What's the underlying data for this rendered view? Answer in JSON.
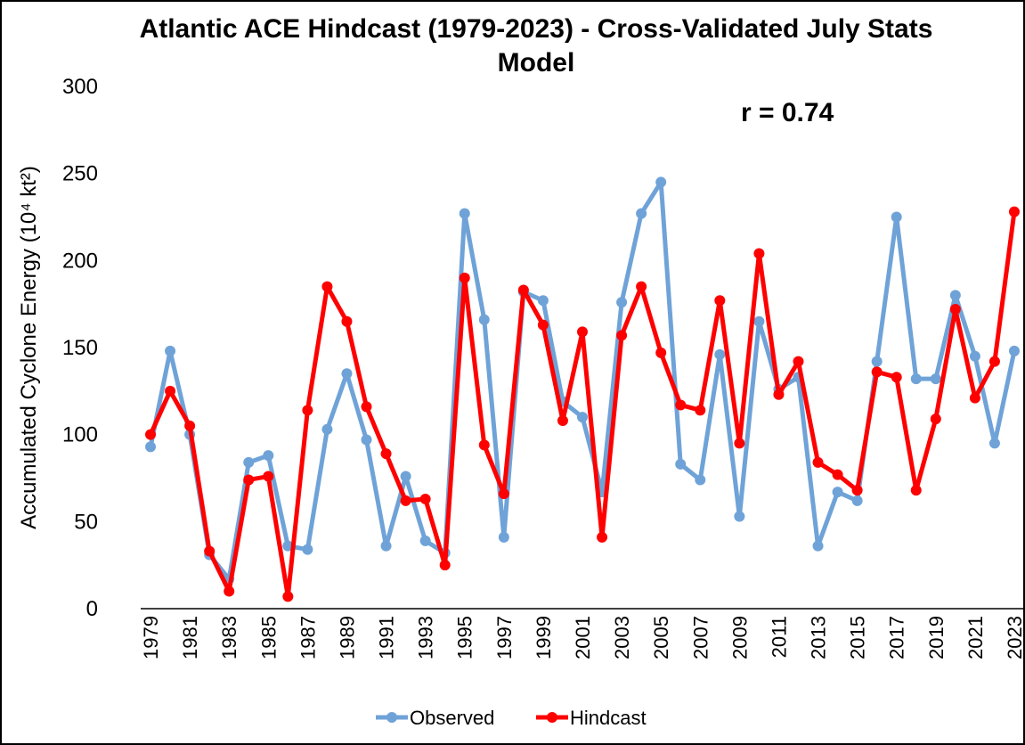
{
  "chart_data": {
    "type": "line",
    "title": "Atlantic ACE Hindcast (1979-2023) - Cross-Validated July Stats Model",
    "annotation": "r = 0.74",
    "y_label": "Accumulated Cyclone Energy (10⁴ kt²)",
    "categories": [
      "1979",
      null,
      "1981",
      null,
      "1983",
      null,
      "1985",
      null,
      "1987",
      null,
      "1989",
      null,
      "1991",
      null,
      "1993",
      null,
      "1995",
      null,
      "1997",
      null,
      "1999",
      null,
      "2001",
      null,
      "2003",
      null,
      "2005",
      null,
      "2007",
      null,
      "2009",
      null,
      "2011",
      null,
      "2013",
      null,
      "2015",
      null,
      "2017",
      null,
      "2019",
      null,
      "2021",
      null,
      "2023"
    ],
    "series": [
      {
        "name": "Observed",
        "color": "#6fa3d8",
        "values": [
          93,
          148,
          100,
          31,
          17,
          84,
          88,
          36,
          34,
          103,
          135,
          97,
          36,
          76,
          39,
          32,
          227,
          166,
          41,
          182,
          177,
          119,
          110,
          67,
          176,
          227,
          245,
          83,
          74,
          146,
          53,
          165,
          126,
          133,
          36,
          67,
          62,
          142,
          225,
          132,
          132,
          180,
          145,
          95,
          148
        ]
      },
      {
        "name": "Hindcast",
        "color": "#ff0000",
        "values": [
          100,
          125,
          105,
          33,
          10,
          74,
          76,
          7,
          114,
          185,
          165,
          116,
          89,
          62,
          63,
          25,
          190,
          94,
          66,
          183,
          163,
          108,
          159,
          41,
          157,
          185,
          147,
          117,
          114,
          177,
          95,
          204,
          123,
          142,
          84,
          77,
          68,
          136,
          133,
          68,
          109,
          172,
          121,
          142,
          228
        ]
      }
    ],
    "ylim": [
      0,
      300
    ],
    "yticks": [
      0,
      50,
      100,
      150,
      200,
      250,
      300
    ],
    "legend": "bottom"
  }
}
